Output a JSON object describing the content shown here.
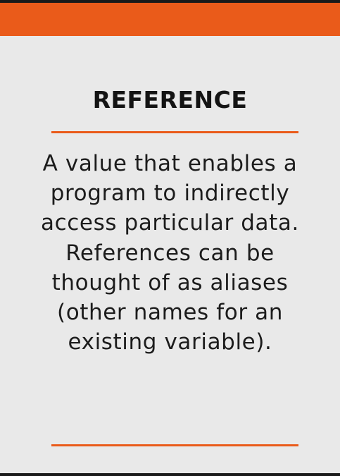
{
  "card": {
    "title": "REFERENCE",
    "definition": "A value that enables a program to indirectly access particular data. References can be thought of as aliases (other names for an existing variable)."
  },
  "colors": {
    "accent": "#ea5b1a",
    "background": "#e9e9e9",
    "text": "#141414"
  }
}
